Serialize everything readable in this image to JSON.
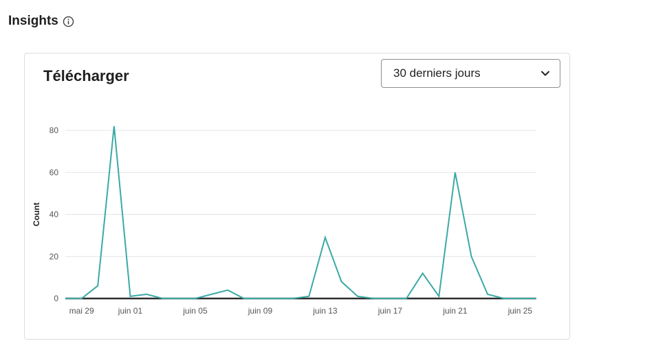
{
  "header": {
    "title": "Insights",
    "info_icon": "info-circle-icon"
  },
  "card": {
    "title": "Télécharger",
    "period_select": {
      "value": "30 derniers jours",
      "icon": "chevron-down-icon"
    }
  },
  "colors": {
    "line": "#3aa9a5",
    "baseline": "#2c2c2c",
    "grid": "#e3e3e3"
  },
  "chart_data": {
    "type": "line",
    "ylabel": "Count",
    "xlabel": "",
    "ylim": [
      0,
      80
    ],
    "yticks": [
      0,
      20,
      40,
      60,
      80
    ],
    "x": [
      "mai 28",
      "mai 29",
      "mai 30",
      "mai 31",
      "juin 01",
      "juin 02",
      "juin 03",
      "juin 04",
      "juin 05",
      "juin 06",
      "juin 07",
      "juin 08",
      "juin 09",
      "juin 10",
      "juin 11",
      "juin 12",
      "juin 13",
      "juin 14",
      "juin 15",
      "juin 16",
      "juin 17",
      "juin 18",
      "juin 19",
      "juin 20",
      "juin 21",
      "juin 22",
      "juin 23",
      "juin 24",
      "juin 25",
      "juin 26"
    ],
    "xtick_labels": [
      "mai 29",
      "juin 01",
      "juin 05",
      "juin 09",
      "juin 13",
      "juin 17",
      "juin 21",
      "juin 25"
    ],
    "series": [
      {
        "values": [
          0,
          0,
          6,
          82,
          1,
          2,
          0,
          0,
          0,
          2,
          4,
          0,
          0,
          0,
          0,
          1,
          29,
          8,
          1,
          0,
          0,
          0,
          12,
          1,
          60,
          20,
          2,
          0,
          0,
          0
        ]
      }
    ],
    "grid": true,
    "legend": "none"
  }
}
